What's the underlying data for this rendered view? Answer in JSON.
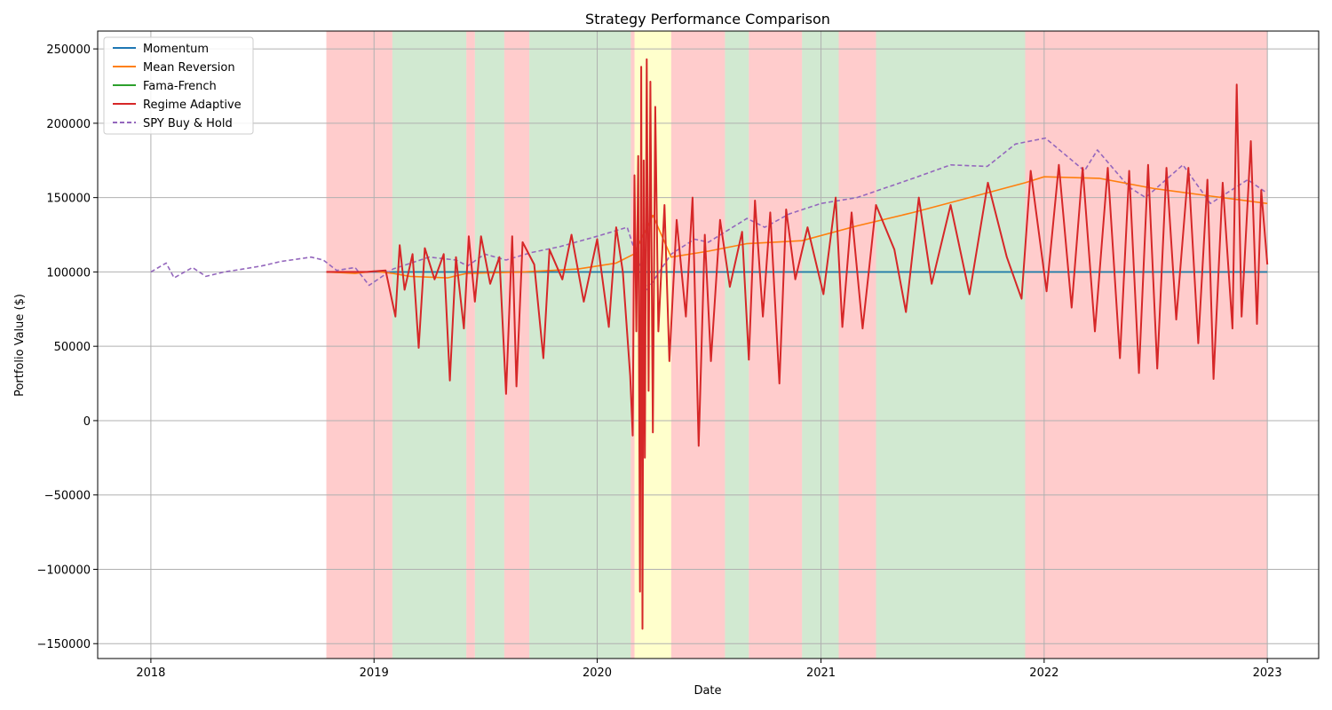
{
  "chart_data": {
    "type": "line",
    "title": "Strategy Performance Comparison",
    "xlabel": "Date",
    "ylabel": "Portfolio Value ($)",
    "xlim": [
      "2017-10-06",
      "2023-03-26"
    ],
    "ylim": [
      -160000,
      262000
    ],
    "grid": true,
    "legend_position": "top-left",
    "x_ticks": [
      "2018",
      "2019",
      "2020",
      "2021",
      "2022",
      "2023"
    ],
    "y_ticks": [
      250000,
      200000,
      150000,
      100000,
      50000,
      0,
      -50000,
      -100000,
      -150000
    ],
    "regimes": [
      {
        "start": "2018-10-15",
        "end": "2019-01-31",
        "regime": "bear",
        "color": "#ff9999"
      },
      {
        "start": "2019-01-31",
        "end": "2019-06-01",
        "regime": "bull",
        "color": "#a3d3a3"
      },
      {
        "start": "2019-06-01",
        "end": "2019-06-15",
        "regime": "bear",
        "color": "#ff9999"
      },
      {
        "start": "2019-06-15",
        "end": "2019-08-02",
        "regime": "bull",
        "color": "#a3d3a3"
      },
      {
        "start": "2019-08-02",
        "end": "2019-09-12",
        "regime": "bear",
        "color": "#ff9999"
      },
      {
        "start": "2019-09-12",
        "end": "2020-02-25",
        "regime": "bull",
        "color": "#a3d3a3"
      },
      {
        "start": "2020-02-25",
        "end": "2020-03-02",
        "regime": "bear",
        "color": "#ff9999"
      },
      {
        "start": "2020-03-02",
        "end": "2020-05-01",
        "regime": "neutral",
        "color": "#ffff99"
      },
      {
        "start": "2020-05-01",
        "end": "2020-07-28",
        "regime": "bear",
        "color": "#ff9999"
      },
      {
        "start": "2020-07-28",
        "end": "2020-09-05",
        "regime": "bull",
        "color": "#a3d3a3"
      },
      {
        "start": "2020-09-05",
        "end": "2020-12-01",
        "regime": "bear",
        "color": "#ff9999"
      },
      {
        "start": "2020-12-01",
        "end": "2021-01-30",
        "regime": "bull",
        "color": "#a3d3a3"
      },
      {
        "start": "2021-01-30",
        "end": "2021-04-01",
        "regime": "bear",
        "color": "#ff9999"
      },
      {
        "start": "2021-04-01",
        "end": "2021-12-01",
        "regime": "bull",
        "color": "#a3d3a3"
      },
      {
        "start": "2021-12-01",
        "end": "2023-01-01",
        "regime": "bear",
        "color": "#ff9999"
      }
    ],
    "series": [
      {
        "name": "Momentum",
        "color": "#1f77b4",
        "style": "solid",
        "points": [
          [
            "2018-10-15",
            100000
          ],
          [
            "2023-01-01",
            100000
          ]
        ]
      },
      {
        "name": "Mean Reversion",
        "color": "#ff7f0e",
        "style": "solid",
        "points": [
          [
            "2018-10-15",
            100000
          ],
          [
            "2018-12-01",
            99000
          ],
          [
            "2019-01-01",
            100500
          ],
          [
            "2019-02-01",
            99000
          ],
          [
            "2019-03-01",
            97000
          ],
          [
            "2019-05-01",
            96000
          ],
          [
            "2019-06-01",
            99000
          ],
          [
            "2019-09-01",
            100000
          ],
          [
            "2019-12-01",
            102000
          ],
          [
            "2020-02-01",
            106000
          ],
          [
            "2020-03-01",
            112000
          ],
          [
            "2020-04-01",
            138000
          ],
          [
            "2020-05-01",
            110000
          ],
          [
            "2020-07-01",
            114000
          ],
          [
            "2020-09-01",
            119000
          ],
          [
            "2020-12-01",
            121000
          ],
          [
            "2021-03-01",
            131000
          ],
          [
            "2021-06-01",
            140000
          ],
          [
            "2021-09-01",
            150000
          ],
          [
            "2021-12-01",
            160000
          ],
          [
            "2022-01-01",
            164000
          ],
          [
            "2022-04-01",
            163000
          ],
          [
            "2022-07-01",
            156000
          ],
          [
            "2022-10-01",
            151000
          ],
          [
            "2023-01-01",
            146000
          ]
        ]
      },
      {
        "name": "Fama-French",
        "color": "#2ca02c",
        "style": "solid",
        "points": [
          [
            "2019-01-31",
            100000
          ],
          [
            "2023-01-01",
            100000
          ]
        ]
      },
      {
        "name": "Regime Adaptive",
        "color": "#d62728",
        "style": "solid",
        "points": [
          [
            "2018-10-15",
            100000
          ],
          [
            "2018-12-20",
            100000
          ],
          [
            "2019-01-20",
            101000
          ],
          [
            "2019-02-05",
            70000
          ],
          [
            "2019-02-12",
            118000
          ],
          [
            "2019-02-20",
            88000
          ],
          [
            "2019-03-05",
            112000
          ],
          [
            "2019-03-15",
            49000
          ],
          [
            "2019-03-25",
            116000
          ],
          [
            "2019-04-10",
            95000
          ],
          [
            "2019-04-25",
            112000
          ],
          [
            "2019-05-05",
            27000
          ],
          [
            "2019-05-15",
            110000
          ],
          [
            "2019-05-28",
            62000
          ],
          [
            "2019-06-05",
            124000
          ],
          [
            "2019-06-15",
            80000
          ],
          [
            "2019-06-25",
            124000
          ],
          [
            "2019-07-10",
            92000
          ],
          [
            "2019-07-25",
            110000
          ],
          [
            "2019-08-05",
            18000
          ],
          [
            "2019-08-15",
            124000
          ],
          [
            "2019-08-22",
            23000
          ],
          [
            "2019-09-01",
            120000
          ],
          [
            "2019-09-20",
            105000
          ],
          [
            "2019-10-05",
            42000
          ],
          [
            "2019-10-15",
            115000
          ],
          [
            "2019-11-05",
            95000
          ],
          [
            "2019-11-20",
            125000
          ],
          [
            "2019-12-10",
            80000
          ],
          [
            "2020-01-01",
            122000
          ],
          [
            "2020-01-20",
            63000
          ],
          [
            "2020-02-01",
            130000
          ],
          [
            "2020-02-12",
            100000
          ],
          [
            "2020-02-24",
            30000
          ],
          [
            "2020-02-28",
            -10000
          ],
          [
            "2020-03-02",
            165000
          ],
          [
            "2020-03-05",
            60000
          ],
          [
            "2020-03-08",
            178000
          ],
          [
            "2020-03-11",
            -115000
          ],
          [
            "2020-03-13",
            238000
          ],
          [
            "2020-03-15",
            -140000
          ],
          [
            "2020-03-17",
            175000
          ],
          [
            "2020-03-19",
            -25000
          ],
          [
            "2020-03-22",
            243000
          ],
          [
            "2020-03-25",
            20000
          ],
          [
            "2020-03-28",
            228000
          ],
          [
            "2020-04-01",
            -8000
          ],
          [
            "2020-04-05",
            211000
          ],
          [
            "2020-04-10",
            60000
          ],
          [
            "2020-04-20",
            145000
          ],
          [
            "2020-04-28",
            40000
          ],
          [
            "2020-05-10",
            135000
          ],
          [
            "2020-05-25",
            70000
          ],
          [
            "2020-06-05",
            150000
          ],
          [
            "2020-06-15",
            -17000
          ],
          [
            "2020-06-25",
            125000
          ],
          [
            "2020-07-05",
            40000
          ],
          [
            "2020-07-20",
            135000
          ],
          [
            "2020-08-05",
            90000
          ],
          [
            "2020-08-25",
            127000
          ],
          [
            "2020-09-05",
            41000
          ],
          [
            "2020-09-15",
            148000
          ],
          [
            "2020-09-28",
            70000
          ],
          [
            "2020-10-10",
            140000
          ],
          [
            "2020-10-25",
            25000
          ],
          [
            "2020-11-05",
            142000
          ],
          [
            "2020-11-20",
            95000
          ],
          [
            "2020-12-10",
            130000
          ],
          [
            "2021-01-05",
            85000
          ],
          [
            "2021-01-25",
            150000
          ],
          [
            "2021-02-05",
            63000
          ],
          [
            "2021-02-20",
            140000
          ],
          [
            "2021-03-10",
            62000
          ],
          [
            "2021-04-01",
            145000
          ],
          [
            "2021-05-01",
            115000
          ],
          [
            "2021-05-20",
            73000
          ],
          [
            "2021-06-10",
            150000
          ],
          [
            "2021-07-01",
            92000
          ],
          [
            "2021-08-01",
            145000
          ],
          [
            "2021-09-01",
            85000
          ],
          [
            "2021-10-01",
            160000
          ],
          [
            "2021-11-01",
            110000
          ],
          [
            "2021-11-25",
            82000
          ],
          [
            "2021-12-10",
            168000
          ],
          [
            "2022-01-05",
            87000
          ],
          [
            "2022-01-25",
            172000
          ],
          [
            "2022-02-15",
            76000
          ],
          [
            "2022-03-05",
            170000
          ],
          [
            "2022-03-25",
            60000
          ],
          [
            "2022-04-15",
            170000
          ],
          [
            "2022-05-05",
            42000
          ],
          [
            "2022-05-20",
            168000
          ],
          [
            "2022-06-05",
            32000
          ],
          [
            "2022-06-20",
            172000
          ],
          [
            "2022-07-05",
            35000
          ],
          [
            "2022-07-20",
            170000
          ],
          [
            "2022-08-05",
            68000
          ],
          [
            "2022-08-25",
            170000
          ],
          [
            "2022-09-10",
            52000
          ],
          [
            "2022-09-25",
            162000
          ],
          [
            "2022-10-05",
            28000
          ],
          [
            "2022-10-20",
            160000
          ],
          [
            "2022-11-05",
            62000
          ],
          [
            "2022-11-12",
            226000
          ],
          [
            "2022-11-20",
            70000
          ],
          [
            "2022-12-05",
            188000
          ],
          [
            "2022-12-15",
            65000
          ],
          [
            "2022-12-22",
            155000
          ],
          [
            "2023-01-01",
            105000
          ]
        ]
      },
      {
        "name": "SPY Buy & Hold",
        "color": "#9467bd",
        "style": "dashed",
        "points": [
          [
            "2018-01-01",
            100000
          ],
          [
            "2018-01-26",
            106000
          ],
          [
            "2018-02-08",
            96000
          ],
          [
            "2018-03-10",
            103000
          ],
          [
            "2018-04-01",
            97000
          ],
          [
            "2018-05-01",
            100000
          ],
          [
            "2018-06-01",
            102000
          ],
          [
            "2018-07-01",
            104000
          ],
          [
            "2018-08-01",
            107000
          ],
          [
            "2018-09-20",
            110000
          ],
          [
            "2018-10-10",
            108000
          ],
          [
            "2018-11-01",
            101000
          ],
          [
            "2018-12-01",
            103000
          ],
          [
            "2018-12-24",
            91000
          ],
          [
            "2019-02-01",
            102000
          ],
          [
            "2019-04-01",
            110000
          ],
          [
            "2019-05-15",
            108000
          ],
          [
            "2019-06-03",
            104000
          ],
          [
            "2019-07-01",
            112000
          ],
          [
            "2019-08-05",
            108000
          ],
          [
            "2019-09-15",
            113000
          ],
          [
            "2019-11-01",
            117000
          ],
          [
            "2020-01-01",
            124000
          ],
          [
            "2020-02-19",
            130000
          ],
          [
            "2020-03-23",
            88000
          ],
          [
            "2020-05-01",
            112000
          ],
          [
            "2020-06-08",
            122000
          ],
          [
            "2020-07-01",
            120000
          ],
          [
            "2020-09-02",
            136000
          ],
          [
            "2020-10-01",
            130000
          ],
          [
            "2020-11-10",
            139000
          ],
          [
            "2021-01-01",
            146000
          ],
          [
            "2021-03-01",
            150000
          ],
          [
            "2021-06-01",
            163000
          ],
          [
            "2021-08-01",
            172000
          ],
          [
            "2021-09-30",
            171000
          ],
          [
            "2021-11-15",
            186000
          ],
          [
            "2022-01-03",
            190000
          ],
          [
            "2022-03-08",
            168000
          ],
          [
            "2022-03-29",
            182000
          ],
          [
            "2022-05-20",
            157000
          ],
          [
            "2022-06-16",
            150000
          ],
          [
            "2022-08-16",
            172000
          ],
          [
            "2022-09-30",
            146000
          ],
          [
            "2022-11-30",
            162000
          ],
          [
            "2022-12-28",
            154000
          ],
          [
            "2023-01-01",
            155000
          ]
        ]
      }
    ]
  }
}
